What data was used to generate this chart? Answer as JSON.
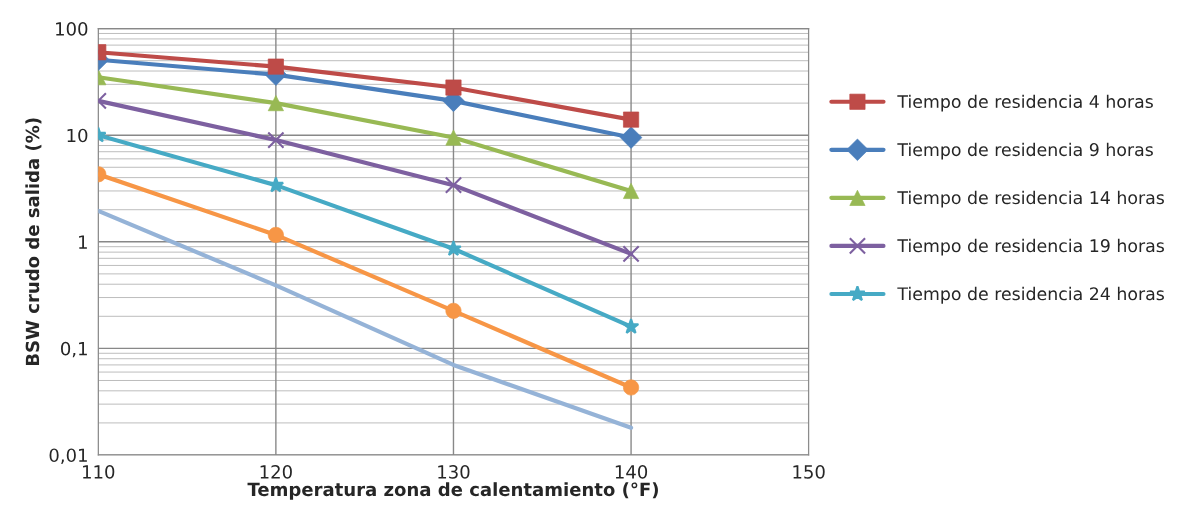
{
  "chart_data": {
    "type": "line",
    "xlabel": "Temperatura zona de calentamiento (°F)",
    "ylabel": "BSW crudo de salida (%)",
    "x": [
      110,
      120,
      130,
      140
    ],
    "xlim": [
      110,
      150
    ],
    "xticks": [
      110,
      120,
      130,
      140,
      150
    ],
    "ylim": [
      0.01,
      100
    ],
    "yticks": [
      {
        "value": 0.01,
        "label": "0,01"
      },
      {
        "value": 0.1,
        "label": "0,1"
      },
      1,
      10,
      100
    ],
    "log": "y",
    "grid": true,
    "legend": "right",
    "series": [
      {
        "name": "Tiempo de residencia 4 horas",
        "color": "#be4b48",
        "marker": "square",
        "values": [
          60,
          44,
          28,
          14
        ]
      },
      {
        "name": "Tiempo de residencia 9 horas",
        "color": "#4a7ebb",
        "marker": "diamond",
        "values": [
          51,
          37,
          21,
          9.5
        ]
      },
      {
        "name": "Tiempo de residencia 14 horas",
        "color": "#98b954",
        "marker": "triangle",
        "values": [
          35,
          20,
          9.5,
          3.0
        ]
      },
      {
        "name": "Tiempo de residencia 19 horas",
        "color": "#7d60a0",
        "marker": "cross",
        "values": [
          21,
          9,
          3.4,
          0.77
        ]
      },
      {
        "name": "Tiempo de residencia 24 horas",
        "color": "#46aac5",
        "marker": "star",
        "values": [
          10,
          3.4,
          0.86,
          0.16
        ]
      },
      {
        "color": "#f79646",
        "marker": "circle",
        "values": [
          4.3,
          1.16,
          0.225,
          0.043
        ]
      },
      {
        "color": "#95b3d7",
        "marker": "none",
        "values": [
          1.95,
          0.39,
          0.07,
          0.018
        ]
      }
    ]
  }
}
